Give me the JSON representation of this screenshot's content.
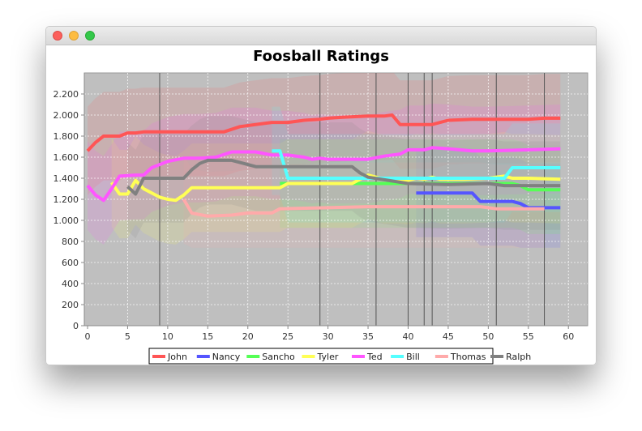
{
  "window": {
    "title": ""
  },
  "chart_data": {
    "type": "line",
    "title": "Foosball Ratings",
    "xlabel": "",
    "ylabel": "",
    "xlim": [
      0,
      62
    ],
    "ylim": [
      0,
      2400
    ],
    "xticks": [
      0,
      5,
      10,
      15,
      20,
      25,
      30,
      35,
      40,
      45,
      50,
      55,
      60
    ],
    "yticks": [
      0,
      200,
      400,
      600,
      800,
      1000,
      1200,
      1400,
      1600,
      1800,
      2000,
      2200
    ],
    "ytick_labels": [
      "0",
      "200",
      "400",
      "600",
      "800",
      "1.000",
      "1.200",
      "1.400",
      "1.600",
      "1.800",
      "2.000",
      "2.200"
    ],
    "grid": true,
    "legend_position": "bottom",
    "vertical_markers": [
      9,
      29,
      36,
      40,
      42,
      43,
      51,
      57
    ],
    "series": [
      {
        "name": "John",
        "color": "#ff5555",
        "x": [
          0,
          1,
          2,
          3,
          4,
          5,
          6,
          7,
          10,
          15,
          17,
          19,
          22,
          23,
          25,
          27,
          29,
          30,
          32,
          35,
          37,
          38,
          39,
          41,
          43,
          45,
          48,
          50,
          55,
          57,
          59
        ],
        "y": [
          1660,
          1740,
          1800,
          1800,
          1800,
          1830,
          1830,
          1840,
          1840,
          1840,
          1840,
          1890,
          1920,
          1930,
          1930,
          1950,
          1960,
          1970,
          1980,
          1990,
          1990,
          2000,
          1910,
          1910,
          1910,
          1950,
          1960,
          1960,
          1960,
          1970,
          1970
        ]
      },
      {
        "name": "Nancy",
        "color": "#5555ff",
        "x": [
          41,
          42,
          45,
          48,
          49,
          50,
          53,
          54,
          55,
          57,
          59
        ],
        "y": [
          1260,
          1260,
          1260,
          1260,
          1180,
          1180,
          1180,
          1160,
          1120,
          1120,
          1120
        ]
      },
      {
        "name": "Sancho",
        "color": "#55ff55",
        "x": [
          24,
          25,
          30,
          35,
          40,
          45,
          50,
          53,
          54,
          55,
          57,
          59
        ],
        "y": [
          1350,
          1350,
          1350,
          1350,
          1350,
          1350,
          1350,
          1350,
          1330,
          1290,
          1290,
          1290
        ]
      },
      {
        "name": "Tyler",
        "color": "#ffff55",
        "x": [
          3,
          4,
          5,
          6,
          7,
          9,
          10,
          11,
          12,
          13,
          15,
          20,
          24,
          25,
          30,
          33,
          35,
          36,
          37,
          39,
          40,
          41,
          42,
          43,
          44,
          47,
          50,
          52,
          53,
          55,
          59
        ],
        "y": [
          1360,
          1250,
          1250,
          1380,
          1300,
          1220,
          1200,
          1190,
          1240,
          1310,
          1310,
          1310,
          1310,
          1350,
          1350,
          1350,
          1430,
          1410,
          1390,
          1390,
          1380,
          1400,
          1390,
          1410,
          1390,
          1390,
          1400,
          1420,
          1400,
          1400,
          1390
        ]
      },
      {
        "name": "Ted",
        "color": "#ff55ff",
        "x": [
          0,
          1,
          2,
          3,
          4,
          6,
          7,
          8,
          10,
          12,
          14,
          16,
          18,
          21,
          23,
          25,
          27,
          28,
          29,
          30,
          33,
          34,
          35,
          37,
          39,
          40,
          41,
          42,
          43,
          45,
          48,
          50,
          55,
          59
        ],
        "y": [
          1330,
          1240,
          1190,
          1300,
          1420,
          1430,
          1430,
          1500,
          1560,
          1590,
          1590,
          1600,
          1650,
          1650,
          1620,
          1620,
          1600,
          1580,
          1590,
          1580,
          1580,
          1580,
          1580,
          1610,
          1630,
          1670,
          1670,
          1670,
          1690,
          1680,
          1660,
          1660,
          1670,
          1680
        ]
      },
      {
        "name": "Bill",
        "color": "#55ffff",
        "x": [
          23,
          24,
          25,
          30,
          33,
          35,
          37,
          40,
          45,
          50,
          52,
          53,
          55,
          59
        ],
        "y": [
          1660,
          1660,
          1400,
          1400,
          1400,
          1400,
          1400,
          1400,
          1400,
          1400,
          1400,
          1500,
          1500,
          1500
        ]
      },
      {
        "name": "Thomas",
        "color": "#ffaaaa",
        "x": [
          12,
          13,
          15,
          18,
          20,
          22,
          23,
          24,
          30,
          35,
          40,
          45,
          49,
          51,
          55,
          57
        ],
        "y": [
          1200,
          1070,
          1040,
          1050,
          1070,
          1070,
          1070,
          1110,
          1120,
          1130,
          1130,
          1130,
          1130,
          1110,
          1110,
          1110
        ]
      },
      {
        "name": "Ralph",
        "color": "#808080",
        "x": [
          5,
          6,
          7,
          12,
          13,
          14,
          15,
          18,
          20,
          21,
          25,
          30,
          33,
          34,
          35,
          40,
          45,
          50,
          52,
          53,
          55,
          59
        ],
        "y": [
          1320,
          1250,
          1400,
          1400,
          1480,
          1540,
          1570,
          1570,
          1530,
          1510,
          1510,
          1510,
          1510,
          1450,
          1410,
          1350,
          1340,
          1350,
          1330,
          1330,
          1330,
          1330
        ]
      }
    ]
  }
}
